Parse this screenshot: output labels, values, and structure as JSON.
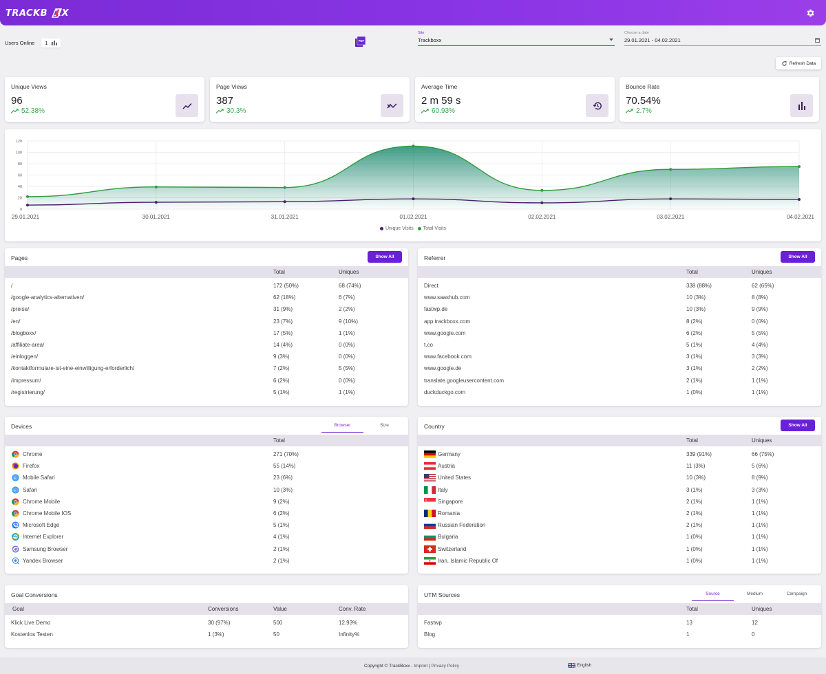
{
  "header": {
    "logo": "TRACKB  XX",
    "settings_icon": "gear-icon"
  },
  "controls": {
    "users_online_label": "Users Online",
    "users_online_count": "1",
    "site_label": "Site",
    "site_value": "Trackboxx",
    "date_label": "Choose a date",
    "date_value": "29.01.2021 - 04.02.2021",
    "refresh_label": "Refresh Data"
  },
  "stats": [
    {
      "label": "Unique Views",
      "value": "96",
      "change": "52.38%",
      "icon": "trend-up-icon"
    },
    {
      "label": "Page Views",
      "value": "387",
      "change": "30.3%",
      "icon": "trend-zigzag-icon"
    },
    {
      "label": "Average Time",
      "value": "2 m 59 s",
      "change": "60.93%",
      "icon": "history-icon"
    },
    {
      "label": "Bounce Rate",
      "value": "70.54%",
      "change": "2.7%",
      "icon": "bar-chart-icon"
    }
  ],
  "chart_data": {
    "type": "area",
    "categories": [
      "29.01.2021",
      "30.01.2021",
      "31.01.2021",
      "01.02.2021",
      "02.02.2021",
      "03.02.2021",
      "04.02.2021"
    ],
    "series": [
      {
        "name": "Unique Visits",
        "values": [
          7,
          12,
          13,
          18,
          11,
          18,
          17
        ],
        "color": "#4a1f6a"
      },
      {
        "name": "Total Visits",
        "values": [
          22,
          39,
          38,
          111,
          33,
          70,
          75
        ],
        "color": "#2e9a3e"
      }
    ],
    "yticks": [
      "0",
      "20",
      "40",
      "60",
      "80",
      "100",
      "120"
    ],
    "ylim": [
      0,
      120
    ],
    "grid": true,
    "legend": "bottom"
  },
  "pages": {
    "title": "Pages",
    "show_all": "Show All",
    "headers": [
      "Total",
      "Uniques"
    ],
    "rows": [
      [
        "/",
        "172 (50%)",
        "68 (74%)"
      ],
      [
        "/google-analytics-alternativen/",
        "62 (18%)",
        "6 (7%)"
      ],
      [
        "/preise/",
        "31 (9%)",
        "2 (2%)"
      ],
      [
        "/en/",
        "23 (7%)",
        "9 (10%)"
      ],
      [
        "/blogboxx/",
        "17 (5%)",
        "1 (1%)"
      ],
      [
        "/affiliate-area/",
        "14 (4%)",
        "0 (0%)"
      ],
      [
        "/einloggen/",
        "9 (3%)",
        "0 (0%)"
      ],
      [
        "/kontaktformulare-ist-eine-einwilligung-erforderlich/",
        "7 (2%)",
        "5 (5%)"
      ],
      [
        "/impressum/",
        "6 (2%)",
        "0 (0%)"
      ],
      [
        "/registrierung/",
        "5 (1%)",
        "1 (1%)"
      ]
    ]
  },
  "referrer": {
    "title": "Referrer",
    "show_all": "Show All",
    "headers": [
      "Total",
      "Uniques"
    ],
    "rows": [
      [
        "Direct",
        "338 (88%)",
        "62 (65%)"
      ],
      [
        "www.saashub.com",
        "10 (3%)",
        "8 (8%)"
      ],
      [
        "fastwp.de",
        "10 (3%)",
        "9 (9%)"
      ],
      [
        "app.trackboxx.com",
        "8 (2%)",
        "0 (0%)"
      ],
      [
        "www.google.com",
        "6 (2%)",
        "5 (5%)"
      ],
      [
        "t.co",
        "5 (1%)",
        "4 (4%)"
      ],
      [
        "www.facebook.com",
        "3 (1%)",
        "3 (3%)"
      ],
      [
        "www.google.de",
        "3 (1%)",
        "2 (2%)"
      ],
      [
        "translate.googleusercontent.com",
        "2 (1%)",
        "1 (1%)"
      ],
      [
        "duckduckgo.com",
        "1 (0%)",
        "1 (1%)"
      ]
    ]
  },
  "devices": {
    "title": "Devices",
    "tabs": [
      "Browser",
      "Size"
    ],
    "active_tab": 0,
    "headers": [
      "Total"
    ],
    "rows": [
      {
        "name": "Chrome",
        "total": "271 (70%)",
        "icon": "chrome"
      },
      {
        "name": "Firefox",
        "total": "55 (14%)",
        "icon": "firefox"
      },
      {
        "name": "Mobile Safari",
        "total": "23 (6%)",
        "icon": "safari"
      },
      {
        "name": "Safari",
        "total": "10 (3%)",
        "icon": "safari"
      },
      {
        "name": "Chrome Mobile",
        "total": "9 (2%)",
        "icon": "chrome"
      },
      {
        "name": "Chrome Mobile IOS",
        "total": "6 (2%)",
        "icon": "chrome"
      },
      {
        "name": "Microsoft Edge",
        "total": "5 (1%)",
        "icon": "edge"
      },
      {
        "name": "Internet Explorer",
        "total": "4 (1%)",
        "icon": "ie"
      },
      {
        "name": "Samsung Browser",
        "total": "2 (1%)",
        "icon": "samsung"
      },
      {
        "name": "Yandex Browser",
        "total": "2 (1%)",
        "icon": "yandex"
      }
    ]
  },
  "country": {
    "title": "Country",
    "show_all": "Show All",
    "headers": [
      "Total",
      "Uniques"
    ],
    "rows": [
      {
        "name": "Germany",
        "total": "339 (91%)",
        "uniques": "66 (75%)",
        "flag": "de"
      },
      {
        "name": "Austria",
        "total": "11 (3%)",
        "uniques": "5 (6%)",
        "flag": "at"
      },
      {
        "name": "United States",
        "total": "10 (3%)",
        "uniques": "8 (9%)",
        "flag": "us"
      },
      {
        "name": "Italy",
        "total": "3 (1%)",
        "uniques": "3 (3%)",
        "flag": "it"
      },
      {
        "name": "Singapore",
        "total": "2 (1%)",
        "uniques": "1 (1%)",
        "flag": "sg"
      },
      {
        "name": "Romania",
        "total": "2 (1%)",
        "uniques": "1 (1%)",
        "flag": "ro"
      },
      {
        "name": "Russian Federation",
        "total": "2 (1%)",
        "uniques": "1 (1%)",
        "flag": "ru"
      },
      {
        "name": "Bulgaria",
        "total": "1 (0%)",
        "uniques": "1 (1%)",
        "flag": "bg"
      },
      {
        "name": "Switzerland",
        "total": "1 (0%)",
        "uniques": "1 (1%)",
        "flag": "ch"
      },
      {
        "name": "Iran, Islamic Republic Of",
        "total": "1 (0%)",
        "uniques": "1 (1%)",
        "flag": "ir"
      }
    ]
  },
  "goals": {
    "title": "Goal Conversions",
    "headers": [
      "Goal",
      "Conversions",
      "Value",
      "Conv. Rate"
    ],
    "rows": [
      [
        "Klick Live Demo",
        "30 (97%)",
        "500",
        "12.93%"
      ],
      [
        "Kostenlos Testen",
        "1 (3%)",
        "50",
        "Infinity%"
      ]
    ]
  },
  "utm": {
    "title": "UTM Sources",
    "tabs": [
      "Source",
      "Medium",
      "Campaign"
    ],
    "active_tab": 0,
    "headers": [
      "Total",
      "Uniques"
    ],
    "rows": [
      [
        "Fastwp",
        "13",
        "12"
      ],
      [
        "Blog",
        "1",
        "0"
      ]
    ]
  },
  "footer": {
    "copyright": "Copyright © TrackBoxx - ",
    "imprint": "Imprint",
    "sep": " | ",
    "privacy": "Privacy Policy",
    "language": "English"
  }
}
